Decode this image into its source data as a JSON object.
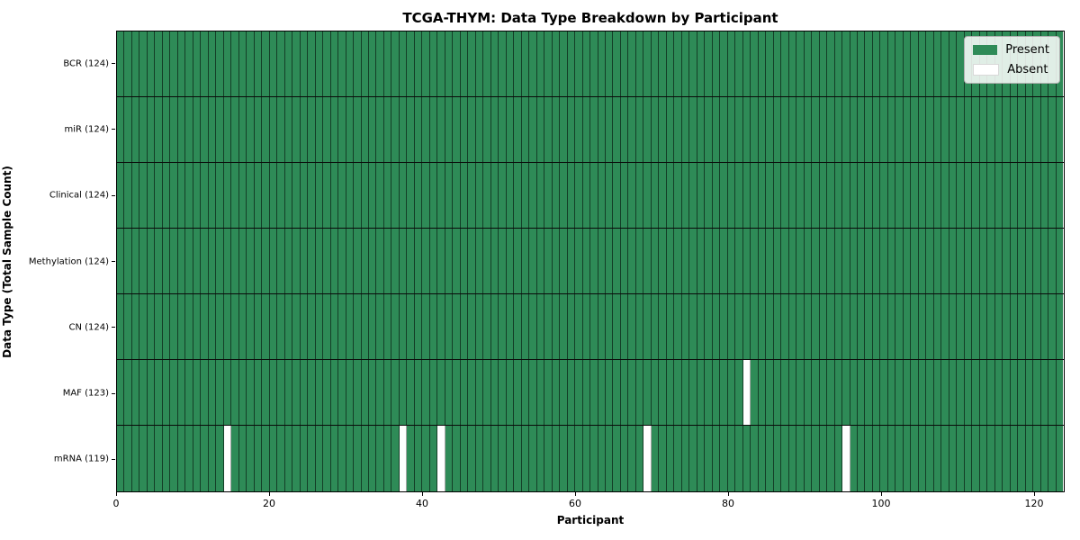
{
  "chart_data": {
    "type": "heatmap",
    "title": "TCGA-THYM: Data Type Breakdown by Participant",
    "xlabel": "Participant",
    "ylabel": "Data Type (Total Sample Count)",
    "n_participants": 124,
    "x_ticks": [
      0,
      20,
      40,
      60,
      80,
      100,
      120
    ],
    "x_range": [
      0,
      124
    ],
    "rows": [
      {
        "label": "BCR (124)",
        "data_type": "BCR",
        "present_count": 124,
        "absent_participants": []
      },
      {
        "label": "miR (124)",
        "data_type": "miR",
        "present_count": 124,
        "absent_participants": []
      },
      {
        "label": "Clinical (124)",
        "data_type": "Clinical",
        "present_count": 124,
        "absent_participants": []
      },
      {
        "label": "Methylation (124)",
        "data_type": "Methylation",
        "present_count": 124,
        "absent_participants": []
      },
      {
        "label": "CN (124)",
        "data_type": "CN",
        "present_count": 124,
        "absent_participants": []
      },
      {
        "label": "MAF (123)",
        "data_type": "MAF",
        "present_count": 123,
        "absent_participants": [
          82
        ]
      },
      {
        "label": "mRNA (119)",
        "data_type": "mRNA",
        "present_count": 119,
        "absent_participants": [
          14,
          37,
          42,
          69,
          95
        ]
      }
    ],
    "legend": [
      {
        "label": "Present",
        "color": "#2e8b57"
      },
      {
        "label": "Absent",
        "color": "#ffffff"
      }
    ],
    "colors": {
      "present": "#2e8b57",
      "absent": "#ffffff",
      "cell_edge": "rgba(0,0,0,0.55)",
      "row_divider": "#0a0a0a"
    },
    "legend_position": "upper right",
    "grid": "cell-borders"
  }
}
